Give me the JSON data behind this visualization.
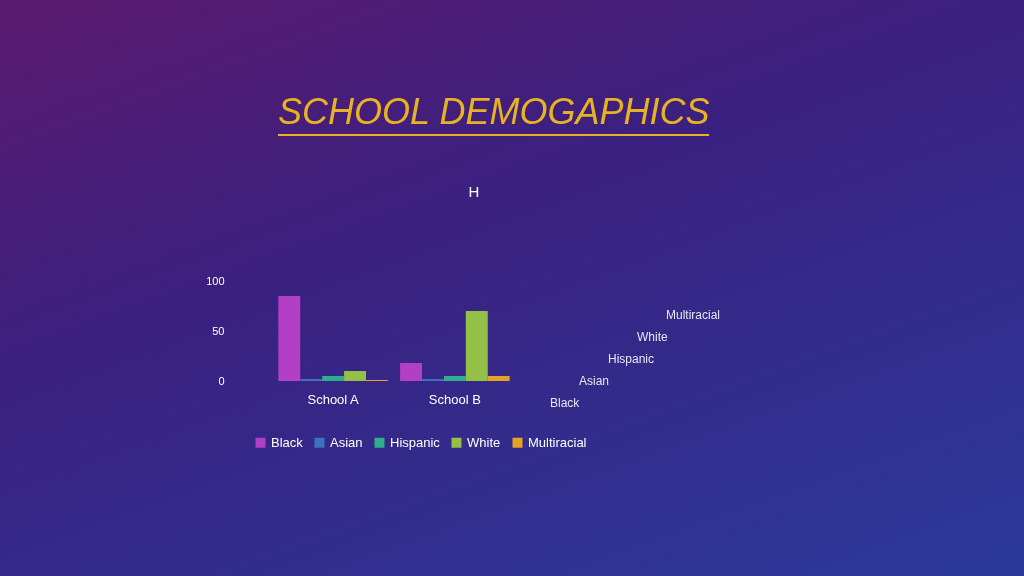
{
  "chart_data": {
    "type": "bar",
    "title": "SCHOOL DEMOGAPHICS",
    "subtitle": "H",
    "categories": [
      "School A",
      "School B"
    ],
    "series": [
      {
        "name": "Black",
        "color": "#b33fc6",
        "values": [
          85,
          18
        ]
      },
      {
        "name": "Asian",
        "color": "#3f6fc0",
        "values": [
          2,
          2
        ]
      },
      {
        "name": "Hispanic",
        "color": "#2fae8f",
        "values": [
          5,
          5
        ]
      },
      {
        "name": "White",
        "color": "#94c047",
        "values": [
          10,
          70
        ]
      },
      {
        "name": "Multiracial",
        "color": "#e6a126",
        "values": [
          1,
          5
        ]
      }
    ],
    "ylim": [
      0,
      100
    ],
    "yticks": [
      0,
      50,
      100
    ],
    "grid": false,
    "legend": "bottom"
  }
}
